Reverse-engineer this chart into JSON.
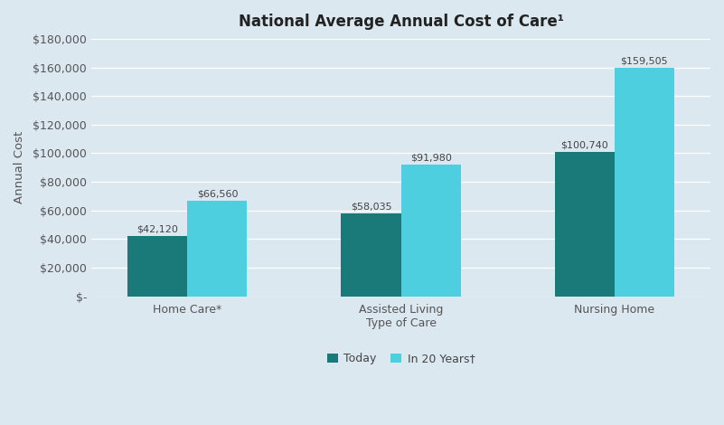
{
  "title": "National Average Annual Cost of Care¹",
  "ylabel": "Annual Cost",
  "background_color": "#dce8f0",
  "plot_bg_color": "#dce8f0",
  "today_values": [
    42120,
    58035,
    100740
  ],
  "future_values": [
    66560,
    91980,
    159505
  ],
  "today_labels": [
    "$42,120",
    "$58,035",
    "$100,740"
  ],
  "future_labels": [
    "$66,560",
    "$91,980",
    "$159,505"
  ],
  "today_color": "#1a7a7a",
  "future_color": "#4dcfdf",
  "ylim": [
    0,
    180000
  ],
  "yticks": [
    0,
    20000,
    40000,
    60000,
    80000,
    100000,
    120000,
    140000,
    160000,
    180000
  ],
  "legend_labels": [
    "Today",
    "In 20 Years†"
  ],
  "bar_width": 0.28,
  "x_positions": [
    0.0,
    1.0,
    2.0
  ],
  "x_labels": [
    "Home Care*",
    "Assisted Living\nType of Care",
    "Nursing Home"
  ],
  "title_fontsize": 12,
  "axis_label_fontsize": 9.5,
  "tick_fontsize": 9,
  "bar_label_fontsize": 8,
  "legend_fontsize": 9
}
